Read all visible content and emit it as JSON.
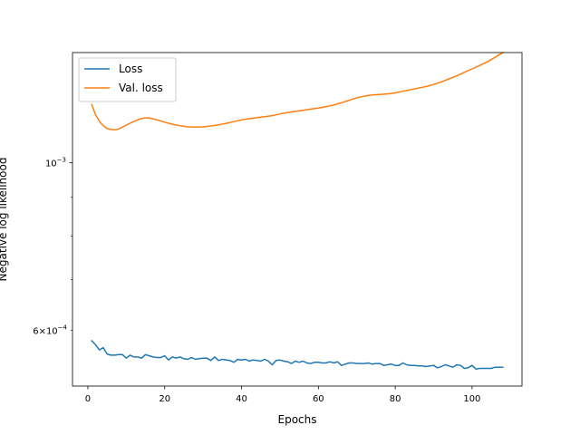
{
  "chart_data": {
    "type": "line",
    "title": "",
    "xlabel": "Epochs",
    "ylabel": "Negative log likelihood",
    "yscale": "log",
    "xlim": [
      -4,
      113
    ],
    "ylim": [
      0.000506,
      0.0014
    ],
    "xticks": [
      0,
      20,
      40,
      60,
      80,
      100
    ],
    "xtick_labels": [
      "0",
      "20",
      "40",
      "60",
      "80",
      "100"
    ],
    "yticks_major": [
      0.001
    ],
    "ytick_major_labels": [
      "10^{-3}"
    ],
    "yticks_minor": [
      0.0006,
      0.0007,
      0.0008,
      0.0009
    ],
    "ytick_minor_labels": [
      "6×10^{-4}",
      "",
      "",
      ""
    ],
    "grid": false,
    "legend": "top-left",
    "series": [
      {
        "name": "Loss",
        "color": "#1f77b4",
        "x": [
          1,
          2,
          3,
          4,
          5,
          6,
          7,
          8,
          9,
          10,
          11,
          12,
          13,
          14,
          15,
          16,
          17,
          18,
          19,
          20,
          21,
          22,
          23,
          24,
          25,
          26,
          27,
          28,
          29,
          30,
          31,
          32,
          33,
          34,
          35,
          36,
          37,
          38,
          39,
          40,
          41,
          42,
          43,
          44,
          45,
          46,
          47,
          48,
          49,
          50,
          51,
          52,
          53,
          54,
          55,
          56,
          57,
          58,
          59,
          60,
          61,
          62,
          63,
          64,
          65,
          66,
          67,
          68,
          69,
          70,
          71,
          72,
          73,
          74,
          75,
          76,
          77,
          78,
          79,
          80,
          81,
          82,
          83,
          84,
          85,
          86,
          87,
          88,
          89,
          90,
          91,
          92,
          93,
          94,
          95,
          96,
          97,
          98,
          99,
          100,
          101,
          102,
          103,
          104,
          105,
          106,
          107,
          108
        ],
        "values": [
          0.000581,
          0.000574,
          0.000565,
          0.000569,
          0.000558,
          0.000556,
          0.000556,
          0.000557,
          0.000557,
          0.000551,
          0.000556,
          0.000553,
          0.000553,
          0.000551,
          0.000557,
          0.000555,
          0.000553,
          0.000552,
          0.000552,
          0.000555,
          0.000548,
          0.000553,
          0.000551,
          0.000553,
          0.00055,
          0.000549,
          0.000552,
          0.000549,
          0.00055,
          0.000551,
          0.000551,
          0.000547,
          0.000553,
          0.000547,
          0.000549,
          0.000548,
          0.000547,
          0.000544,
          0.000549,
          0.000548,
          0.000549,
          0.000546,
          0.000548,
          0.000547,
          0.000546,
          0.000549,
          0.000546,
          0.00054,
          0.000547,
          0.000548,
          0.000546,
          0.000545,
          0.000542,
          0.000546,
          0.000544,
          0.000546,
          0.000543,
          0.000542,
          0.000544,
          0.000544,
          0.000543,
          0.000543,
          0.000545,
          0.000543,
          0.000545,
          0.000539,
          0.000541,
          0.000543,
          0.000543,
          0.000542,
          0.000542,
          0.000542,
          0.000543,
          0.000541,
          0.000542,
          0.000542,
          0.000539,
          0.00054,
          0.000541,
          0.000539,
          0.000539,
          0.000543,
          0.00054,
          0.000539,
          0.000539,
          0.000538,
          0.000538,
          0.000537,
          0.000538,
          0.000539,
          0.000535,
          0.000537,
          0.00054,
          0.000538,
          0.000536,
          0.00054,
          0.000539,
          0.000534,
          0.000535,
          0.000539,
          0.000533,
          0.000534,
          0.000534,
          0.000534,
          0.000534,
          0.000536,
          0.000536,
          0.000536
        ]
      },
      {
        "name": "Val. loss",
        "color": "#ff7f0e",
        "x": [
          1,
          2,
          3,
          4,
          5,
          6,
          7,
          8,
          9,
          10,
          12,
          14,
          15,
          16,
          18,
          20,
          22,
          24,
          26,
          28,
          30,
          32,
          34,
          36,
          38,
          40,
          42,
          44,
          46,
          48,
          50,
          52,
          54,
          56,
          58,
          60,
          62,
          64,
          66,
          68,
          70,
          72,
          74,
          76,
          78,
          80,
          82,
          84,
          86,
          88,
          90,
          92,
          94,
          96,
          98,
          100,
          102,
          104,
          106,
          108
        ],
        "values": [
          0.001195,
          0.001158,
          0.001135,
          0.00112,
          0.00111,
          0.001107,
          0.001106,
          0.001109,
          0.001115,
          0.001122,
          0.001135,
          0.001145,
          0.001147,
          0.001147,
          0.00114,
          0.001132,
          0.001125,
          0.00112,
          0.001116,
          0.001115,
          0.001116,
          0.001119,
          0.001123,
          0.001128,
          0.001134,
          0.00114,
          0.001144,
          0.001148,
          0.001151,
          0.001155,
          0.001161,
          0.001166,
          0.00117,
          0.001174,
          0.001178,
          0.001182,
          0.001187,
          0.001193,
          0.001201,
          0.00121,
          0.00122,
          0.001226,
          0.00123,
          0.001232,
          0.001234,
          0.001238,
          0.001244,
          0.00125,
          0.001256,
          0.001262,
          0.00127,
          0.00128,
          0.001292,
          0.001304,
          0.001318,
          0.001332,
          0.001346,
          0.001361,
          0.00138,
          0.0014
        ]
      }
    ]
  }
}
